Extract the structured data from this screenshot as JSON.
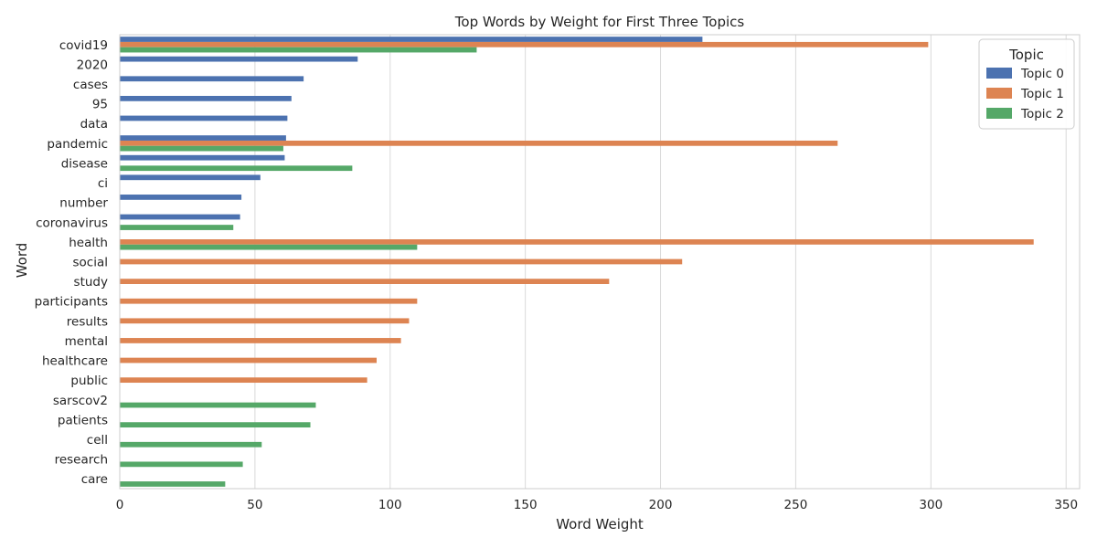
{
  "chart_data": {
    "type": "bar",
    "orientation": "horizontal",
    "title": "Top Words by Weight for First Three Topics",
    "xlabel": "Word Weight",
    "ylabel": "Word",
    "xlim": [
      0,
      355
    ],
    "xticks": [
      0,
      50,
      100,
      150,
      200,
      250,
      300,
      350
    ],
    "grid": true,
    "legend_title": "Topic",
    "legend_position": "top-right",
    "categories": [
      "covid19",
      "2020",
      "cases",
      "95",
      "data",
      "pandemic",
      "disease",
      "ci",
      "number",
      "coronavirus",
      "health",
      "social",
      "study",
      "participants",
      "results",
      "mental",
      "healthcare",
      "public",
      "sarscov2",
      "patients",
      "cell",
      "research",
      "care"
    ],
    "series": [
      {
        "name": "Topic 0",
        "color": "#4c72b0",
        "values": [
          215.5,
          88,
          68,
          63.5,
          62,
          61.5,
          61,
          52,
          45,
          44.5,
          null,
          null,
          null,
          null,
          null,
          null,
          null,
          null,
          null,
          null,
          null,
          null,
          null
        ]
      },
      {
        "name": "Topic 1",
        "color": "#dd8452",
        "values": [
          299,
          null,
          null,
          null,
          null,
          265.5,
          null,
          null,
          null,
          null,
          338,
          208,
          181,
          110,
          107,
          104,
          95,
          91.5,
          null,
          null,
          null,
          null,
          null
        ]
      },
      {
        "name": "Topic 2",
        "color": "#55a868",
        "values": [
          132,
          null,
          null,
          null,
          null,
          60.5,
          86,
          null,
          null,
          42,
          110,
          null,
          null,
          null,
          null,
          null,
          null,
          null,
          72.5,
          70.5,
          52.5,
          45.5,
          39
        ]
      }
    ]
  }
}
